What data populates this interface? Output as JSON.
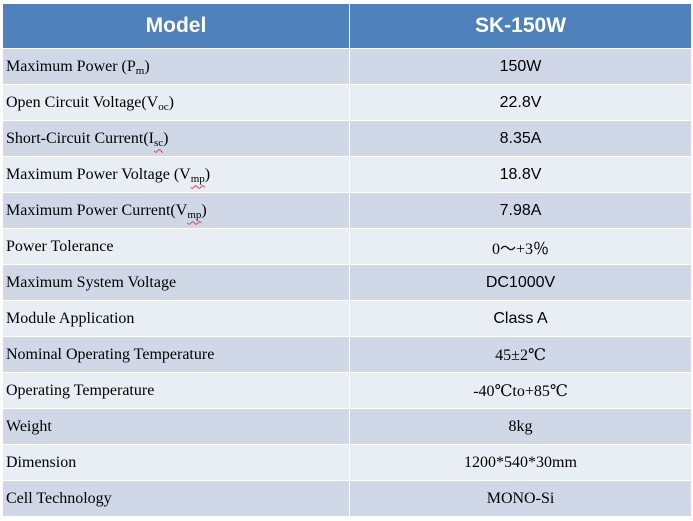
{
  "header": {
    "model_label": "Model",
    "model_value": "SK-150W"
  },
  "rows": [
    {
      "label": "Maximum Power (P",
      "sub": "m",
      "after": ")",
      "value": "150W",
      "font": "sans"
    },
    {
      "label": "Open Circuit Voltage(V",
      "sub": "oc",
      "after": ")",
      "value": "22.8V",
      "font": "sans"
    },
    {
      "label": "Short-Circuit Current(I",
      "sub": "sc",
      "after": ")",
      "value": "8.35A",
      "font": "sans"
    },
    {
      "label": "Maximum Power Voltage (V",
      "sub": "mp",
      "after": ")",
      "value": "18.8V",
      "font": "sans"
    },
    {
      "label": "Maximum Power Current(V",
      "sub": "mp",
      "after": ")",
      "value": "7.98A",
      "font": "sans"
    },
    {
      "label": "Power Tolerance",
      "value": "0～+3％",
      "font": "serif"
    },
    {
      "label": "Maximum System Voltage",
      "value": "DC1000V",
      "font": "sans"
    },
    {
      "label": "Module Application",
      "value": "Class A",
      "font": "sans"
    },
    {
      "label": "Nominal Operating Temperature",
      "value": "45±2℃",
      "font": "serif"
    },
    {
      "label": "Operating Temperature",
      "value": "-40℃to+85℃",
      "font": "serif"
    },
    {
      "label": "Weight",
      "value": "8kg",
      "font": "serif"
    },
    {
      "label": "Dimension",
      "value": "1200*540*30mm",
      "font": "serif"
    },
    {
      "label": "Cell Technology",
      "value": "MONO-Si",
      "font": "serif"
    }
  ]
}
